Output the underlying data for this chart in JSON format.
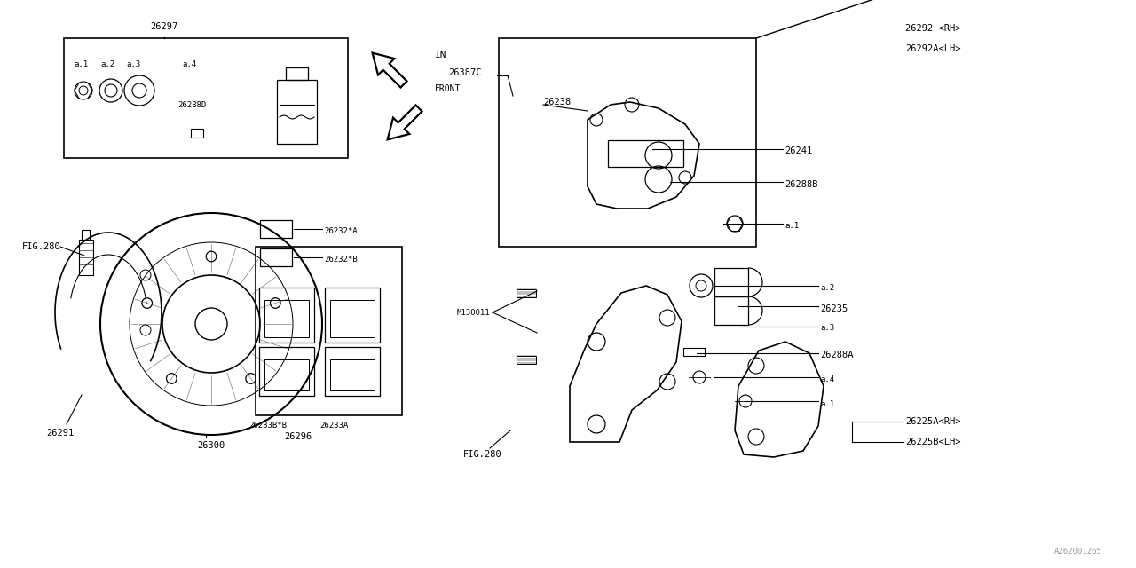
{
  "bg_color": "#FEFEFE",
  "line_color": "#000000",
  "text_color": "#000000",
  "font_family": "monospace",
  "label_font_size": 7.5,
  "small_font_size": 6.5,
  "fig_width": 12.8,
  "fig_height": 6.4,
  "watermark": "A262001265",
  "arrow_in_label": "IN",
  "arrow_front_label": "FRONT",
  "part_labels": {
    "26297": [
      1.85,
      6.08
    ],
    "26387C": [
      5.05,
      5.58
    ],
    "26238": [
      6.15,
      5.25
    ],
    "26292_RH": "26292 <RH>",
    "26292A_LH": "26292A<LH>",
    "26241": "26241",
    "26288B": "26288B",
    "a1_top": "a.1",
    "a2": "a.2",
    "26235": "26235",
    "a3": "a.3",
    "26288A": "26288A",
    "a4": "a.4",
    "a1_bot": "a.1",
    "26225A_RH": "26225A<RH>",
    "26225B_LH": "26225B<LH>",
    "FIG280_top": "FIG.280",
    "FIG280_bot": "FIG.280",
    "M130011": "M130011",
    "26291": "26291",
    "26300": "26300",
    "26296": "26296",
    "26233B_B": "26233B*B",
    "26233A": "26233A",
    "26232_A": "26232*A",
    "26232_B": "26232*B",
    "26288D": "26288D",
    "a1_box": "a.1",
    "a2_box": "a.2",
    "a3_box": "a.3",
    "a4_box": "a.4"
  },
  "watermark_color": "#999999"
}
